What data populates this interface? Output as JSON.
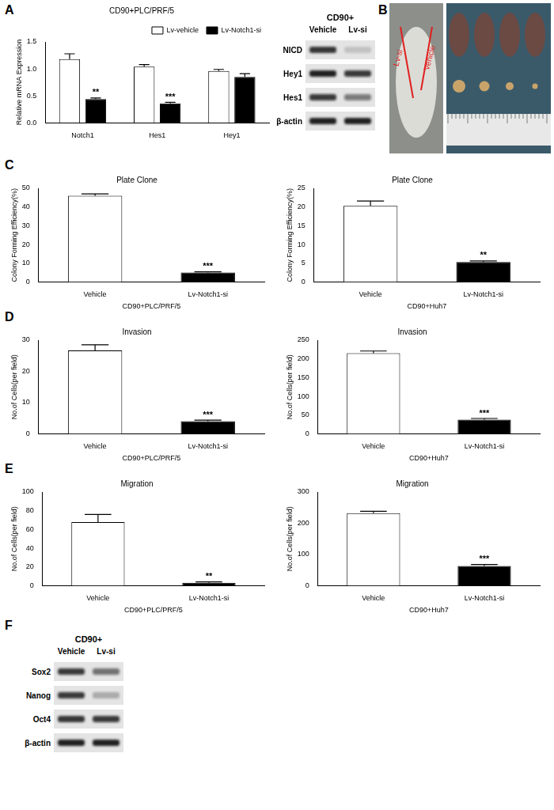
{
  "panel_labels": [
    "A",
    "B",
    "C",
    "D",
    "E",
    "F"
  ],
  "chart_data": [
    {
      "type": "bar",
      "title": "CD90+PLC/PRF/5",
      "y_label": "Relative mRNA Expression",
      "categories": [
        "Notch1",
        "Hes1",
        "Hey1"
      ],
      "series": [
        {
          "name": "Lv-vehicle",
          "color": "#ffffff",
          "values": [
            1.18,
            1.04,
            0.96
          ],
          "errors": [
            0.1,
            0.04,
            0.03
          ]
        },
        {
          "name": "Lv-Notch1-si",
          "color": "#000000",
          "values": [
            0.44,
            0.36,
            0.85
          ],
          "errors": [
            0.02,
            0.02,
            0.06
          ],
          "significance": [
            "**",
            "***",
            null
          ]
        }
      ],
      "ylim": [
        0,
        1.5
      ],
      "yticks": [
        {
          "value": 0,
          "label": "0.0"
        },
        0.5,
        {
          "value": 1,
          "label": "1.0"
        },
        1.5
      ],
      "legend": "upper right",
      "grid": false
    },
    {
      "type": "bar",
      "title": "Plate Clone",
      "y_label": "Colony Forming Efficiency(%)",
      "x_label": "CD90+PLC/PRF/5",
      "categories": [
        "Vehicle",
        "Lv-Notch1-si"
      ],
      "values": [
        46,
        5
      ],
      "errors": [
        1,
        0.4
      ],
      "significance": [
        null,
        "***"
      ],
      "colors": [
        "#ffffff",
        "#000000"
      ],
      "ylim": [
        0,
        50
      ],
      "yticks": [
        0,
        10,
        20,
        30,
        40,
        50
      ],
      "grid": false
    },
    {
      "type": "bar",
      "title": "Plate Clone",
      "y_label": "Colony Forming Efficiency(%)",
      "x_label": "CD90+Huh7",
      "categories": [
        "Vehicle",
        "Lv-Notch1-si"
      ],
      "values": [
        20.3,
        5.3
      ],
      "errors": [
        1.3,
        0.3
      ],
      "significance": [
        null,
        "**"
      ],
      "colors": [
        "#ffffff",
        "#000000"
      ],
      "ylim": [
        0,
        25
      ],
      "yticks": [
        0,
        5,
        10,
        15,
        20,
        25
      ],
      "grid": false
    },
    {
      "type": "bar",
      "title": "Invasion",
      "y_label": "No.of Cells(per field)",
      "x_label": "CD90+PLC/PRF/5",
      "categories": [
        "Vehicle",
        "Lv-Notch1-si"
      ],
      "values": [
        26.7,
        4
      ],
      "errors": [
        1.8,
        0.4
      ],
      "significance": [
        null,
        "***"
      ],
      "colors": [
        "#ffffff",
        "#000000"
      ],
      "ylim": [
        0,
        30
      ],
      "yticks": [
        0,
        10,
        20,
        30
      ],
      "grid": false
    },
    {
      "type": "bar",
      "title": "Invasion",
      "y_label": "No.of Cells(per field)",
      "x_label": "CD90+Huh7",
      "categories": [
        "Vehicle",
        "Lv-Notch1-si"
      ],
      "values": [
        215,
        38
      ],
      "errors": [
        6,
        3
      ],
      "significance": [
        null,
        "***"
      ],
      "colors": [
        "#ffffff",
        "#000000"
      ],
      "ylim": [
        0,
        250
      ],
      "yticks": [
        0,
        50,
        100,
        150,
        200,
        250
      ],
      "grid": false
    },
    {
      "type": "bar",
      "title": "Migration",
      "y_label": "No.of Cells(per field)",
      "x_label": "CD90+PLC/PRF/5",
      "categories": [
        "Vehicle",
        "Lv-Notch1-si"
      ],
      "values": [
        68,
        3
      ],
      "errors": [
        8,
        1
      ],
      "significance": [
        null,
        "**"
      ],
      "colors": [
        "#ffffff",
        "#000000"
      ],
      "ylim": [
        0,
        100
      ],
      "yticks": [
        0,
        20,
        40,
        60,
        80,
        100
      ],
      "grid": false
    },
    {
      "type": "bar",
      "title": "Migration",
      "y_label": "No.of Cells(per field)",
      "x_label": "CD90+Huh7",
      "categories": [
        "Vehicle",
        "Lv-Notch1-si"
      ],
      "values": [
        232,
        63
      ],
      "errors": [
        6,
        5
      ],
      "significance": [
        null,
        "***"
      ],
      "colors": [
        "#ffffff",
        "#000000"
      ],
      "ylim": [
        0,
        300
      ],
      "yticks": [
        0,
        100,
        200,
        300
      ],
      "grid": false
    }
  ],
  "blots": [
    {
      "header": "CD90+",
      "lanes": [
        "Vehicle",
        "Lv-si"
      ],
      "rows": [
        {
          "label": "NICD",
          "intensity": [
            0.85,
            0.15
          ]
        },
        {
          "label": "Hey1",
          "intensity": [
            0.95,
            0.8
          ]
        },
        {
          "label": "Hes1",
          "intensity": [
            0.8,
            0.5
          ]
        },
        {
          "label": "β-actin",
          "intensity": [
            0.95,
            0.95
          ]
        }
      ]
    },
    {
      "header": "CD90+",
      "lanes": [
        "Vehicle",
        "Lv-si"
      ],
      "rows": [
        {
          "label": "Sox2",
          "intensity": [
            0.8,
            0.55
          ]
        },
        {
          "label": "Nanog",
          "intensity": [
            0.8,
            0.25
          ]
        },
        {
          "label": "Oct4",
          "intensity": [
            0.85,
            0.8
          ]
        },
        {
          "label": "β-actin",
          "intensity": [
            0.95,
            0.95
          ]
        }
      ]
    }
  ],
  "photo": {
    "labels": [
      "Lv-si",
      "Vehicle"
    ]
  }
}
